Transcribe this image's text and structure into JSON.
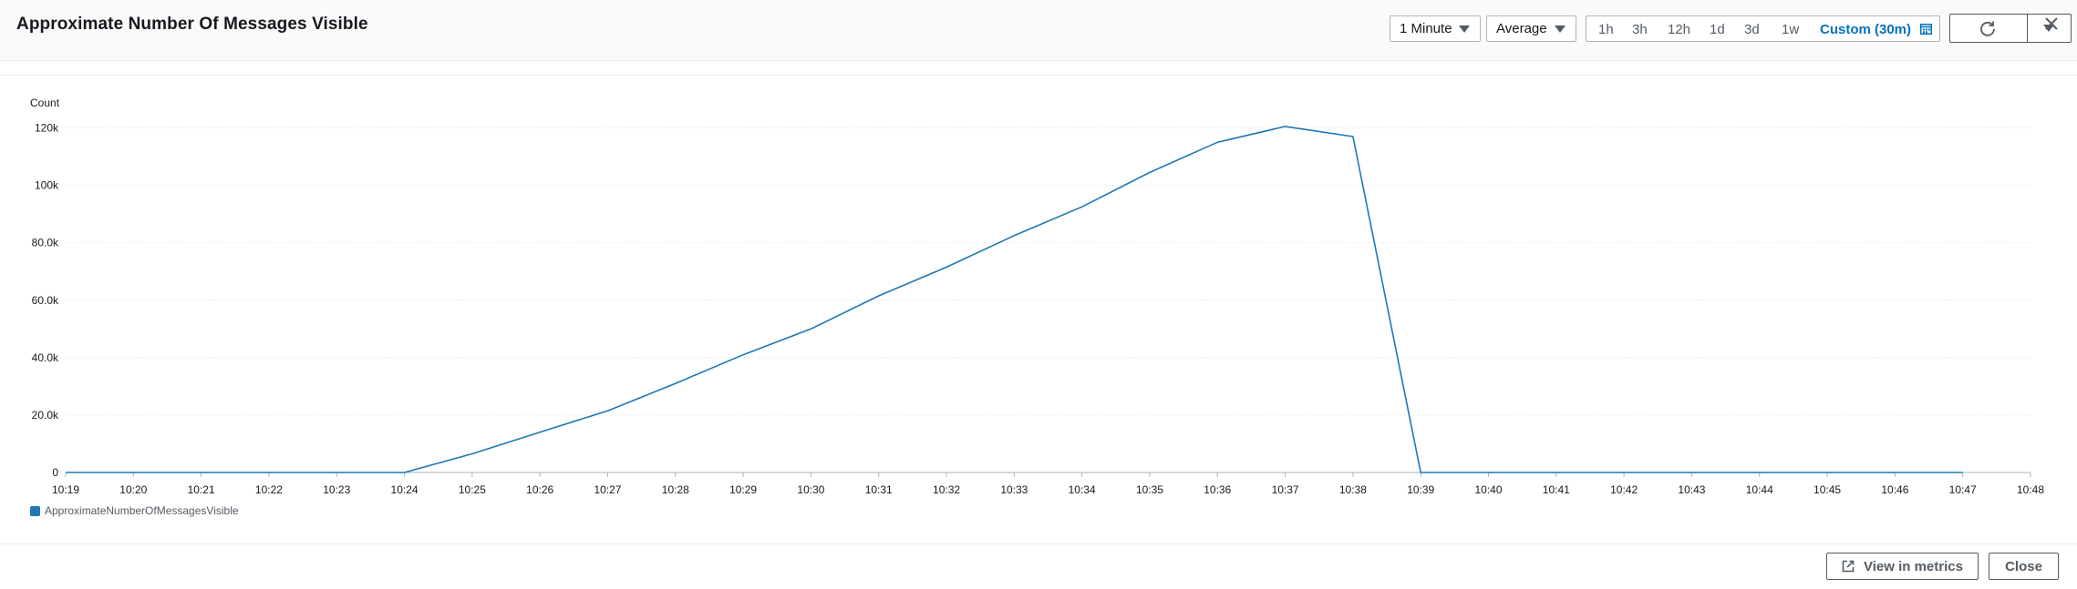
{
  "header": {
    "title": "Approximate Number Of Messages Visible",
    "period": "1 Minute",
    "statistic": "Average",
    "ranges": [
      "1h",
      "3h",
      "12h",
      "1d",
      "3d",
      "1w"
    ],
    "custom_range": "Custom (30m)"
  },
  "icons": {
    "calendar": "calendar-icon",
    "refresh": "refresh-icon",
    "dropdown": "chevron-down-icon",
    "close": "close-icon",
    "external": "external-link-icon"
  },
  "footer": {
    "view_in_metrics": "View in metrics",
    "close": "Close"
  },
  "colors": {
    "series": "#1f77b4",
    "accent": "#0073bb"
  },
  "chart_data": {
    "type": "line",
    "ylabel": "Count",
    "ylim": [
      0,
      120000
    ],
    "yticks": [
      0,
      20000,
      40000,
      60000,
      80000,
      100000,
      120000
    ],
    "ytick_labels": [
      "0",
      "20.0k",
      "40.0k",
      "60.0k",
      "80.0k",
      "100k",
      "120k"
    ],
    "xtick_labels": [
      "10:19",
      "10:20",
      "10:21",
      "10:22",
      "10:23",
      "10:24",
      "10:25",
      "10:26",
      "10:27",
      "10:28",
      "10:29",
      "10:30",
      "10:31",
      "10:32",
      "10:33",
      "10:34",
      "10:35",
      "10:36",
      "10:37",
      "10:38",
      "10:39",
      "10:40",
      "10:41",
      "10:42",
      "10:43",
      "10:44",
      "10:45",
      "10:46",
      "10:47",
      "10:48"
    ],
    "grid": true,
    "legend_placement": "bottom-left",
    "series": [
      {
        "name": "ApproximateNumberOfMessagesVisible",
        "x": [
          "10:19",
          "10:20",
          "10:21",
          "10:22",
          "10:23",
          "10:24",
          "10:25",
          "10:26",
          "10:27",
          "10:28",
          "10:29",
          "10:30",
          "10:31",
          "10:32",
          "10:33",
          "10:34",
          "10:35",
          "10:36",
          "10:37",
          "10:38",
          "10:39",
          "10:40",
          "10:41",
          "10:42",
          "10:43",
          "10:44",
          "10:45",
          "10:46",
          "10:47"
        ],
        "values": [
          0,
          0,
          0,
          0,
          0,
          0,
          6500,
          14000,
          21500,
          31000,
          41000,
          50000,
          61500,
          71500,
          82500,
          92500,
          104500,
          115000,
          120500,
          117000,
          0,
          0,
          0,
          0,
          0,
          0,
          0,
          0,
          0
        ]
      }
    ]
  }
}
